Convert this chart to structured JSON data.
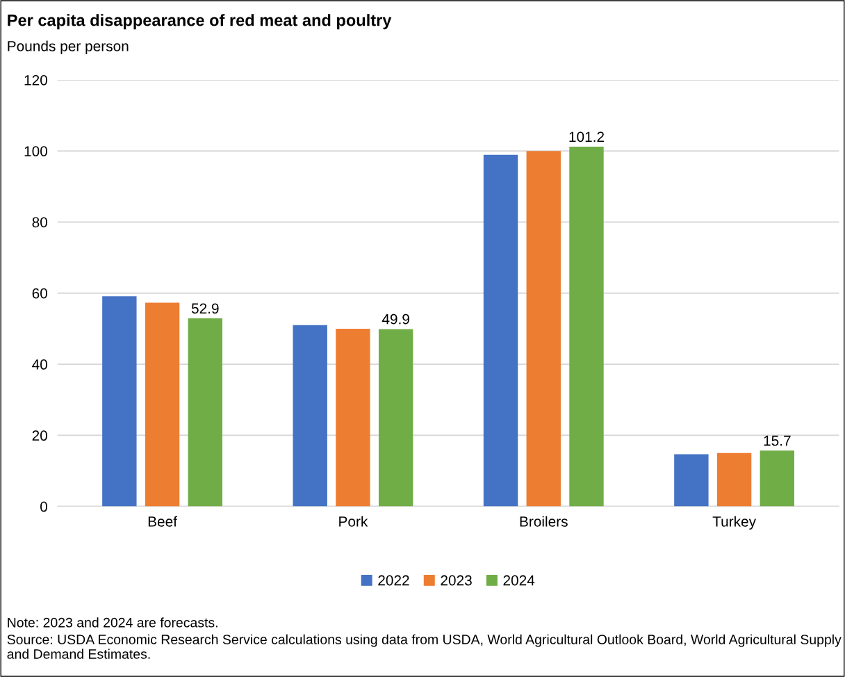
{
  "chart_data": {
    "type": "bar",
    "title": "Per capita disappearance of red meat and poultry",
    "subtitle": "Pounds per person",
    "categories": [
      "Beef",
      "Pork",
      "Broilers",
      "Turkey"
    ],
    "series": [
      {
        "name": "2022",
        "color": "#4472c4",
        "values": [
          59.1,
          51.0,
          98.9,
          14.7
        ]
      },
      {
        "name": "2023",
        "color": "#ed7d31",
        "values": [
          57.3,
          50.0,
          100.0,
          15.0
        ]
      },
      {
        "name": "2024",
        "color": "#70ad47",
        "values": [
          52.9,
          49.9,
          101.2,
          15.7
        ],
        "value_labels": [
          "52.9",
          "49.9",
          "101.2",
          "15.7"
        ]
      }
    ],
    "ylim": [
      0,
      120
    ],
    "yticks": [
      0,
      20,
      40,
      60,
      80,
      100,
      120
    ],
    "grid": "y",
    "legend": "bottom",
    "annotations": [
      "Note: 2023 and 2024 are forecasts.",
      "Source: USDA Economic Research Service calculations using data from USDA, World Agricultural Outlook Board, World Agricultural Supply and Demand Estimates."
    ]
  }
}
